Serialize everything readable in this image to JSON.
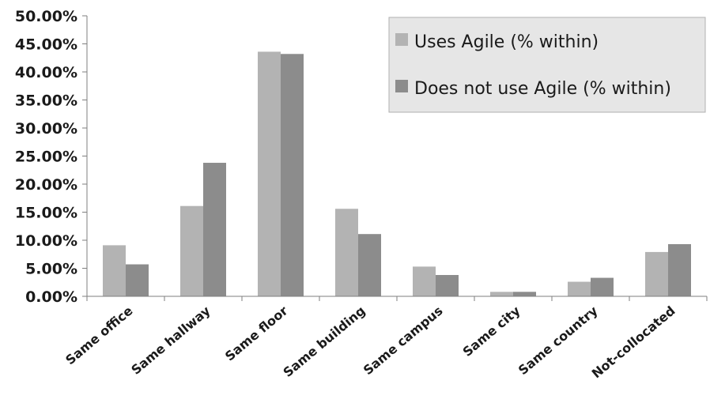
{
  "chart_data": {
    "type": "bar",
    "title": "",
    "xlabel": "",
    "ylabel": "",
    "categories": [
      "Same office",
      "Same hallway",
      "Same floor",
      "Same building",
      "Same campus",
      "Same city",
      "Same country",
      "Not-collocated"
    ],
    "series": [
      {
        "name": "Uses Agile (% within)",
        "color": "#b3b3b3",
        "values": [
          9.1,
          16.1,
          43.6,
          15.6,
          5.3,
          0.8,
          2.6,
          7.9
        ]
      },
      {
        "name": "Does not use Agile (% within)",
        "color": "#8c8c8c",
        "values": [
          5.7,
          23.8,
          43.2,
          11.1,
          3.8,
          0.8,
          3.3,
          9.3
        ]
      }
    ],
    "ylim": [
      0,
      50
    ],
    "yticks": [
      "0.00%",
      "5.00%",
      "10.00%",
      "15.00%",
      "20.00%",
      "25.00%",
      "30.00%",
      "35.00%",
      "40.00%",
      "45.00%",
      "50.00%"
    ],
    "grid": false,
    "legend_position": "top-right"
  }
}
